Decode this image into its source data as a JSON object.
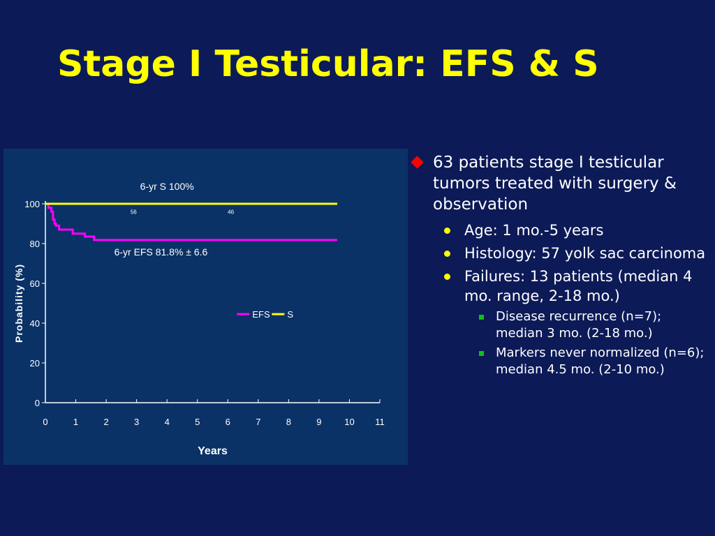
{
  "slide": {
    "title": "Stage I Testicular: EFS & S"
  },
  "bullets": {
    "main": "63 patients stage I testicular tumors treated with surgery & observation",
    "sub": [
      {
        "text": "Age: 1 mo.-5 years"
      },
      {
        "text": "Histology: 57 yolk sac carcinoma"
      },
      {
        "text": "Failures: 13 patients (median 4 mo. range, 2-18 mo.)"
      }
    ],
    "subsub": [
      {
        "text": "Disease recurrence (n=7); median 3 mo. (2-18 mo.)"
      },
      {
        "text": "Markers never normalized (n=6); median 4.5 mo. (2-10 mo.)"
      }
    ]
  },
  "colors": {
    "background": "#0c1a57",
    "chart_background": "#0b3266",
    "title": "#ffff00",
    "efs": "#ff00ff",
    "s": "#ffff00",
    "bullet_l1": "#ff0000",
    "bullet_l2": "#ffff00",
    "bullet_l3": "#10c010"
  },
  "chart_data": {
    "type": "line",
    "title": "",
    "xlabel": "Years",
    "ylabel": "Probability (%)",
    "xlim": [
      0,
      11
    ],
    "ylim": [
      0,
      100
    ],
    "xticks": [
      "0",
      "1",
      "2",
      "3",
      "4",
      "5",
      "6",
      "7",
      "8",
      "9",
      "10",
      "11"
    ],
    "yticks": [
      "0",
      "20",
      "40",
      "60",
      "80",
      "100"
    ],
    "grid": false,
    "legend_position": "center-right",
    "series": [
      {
        "name": "EFS",
        "step": true,
        "x": [
          0,
          0.1,
          0.2,
          0.25,
          0.3,
          0.35,
          0.45,
          0.9,
          1.3,
          1.6,
          9.6
        ],
        "y": [
          100,
          98,
          96,
          92,
          90,
          89,
          87,
          85,
          83.5,
          81.8,
          81.8
        ]
      },
      {
        "name": "S",
        "step": true,
        "x": [
          0,
          9.6
        ],
        "y": [
          100,
          100
        ]
      }
    ],
    "annotations": [
      {
        "text": "6-yr S 100%",
        "x": 4.0,
        "y": 107
      },
      {
        "text": "6-yr EFS 81.8% ± 6.6",
        "x": 3.8,
        "y": 74
      }
    ],
    "at_risk_labels": [
      {
        "text": "56",
        "x": 2.9,
        "y": 95
      },
      {
        "text": "46",
        "x": 6.1,
        "y": 95
      }
    ]
  }
}
